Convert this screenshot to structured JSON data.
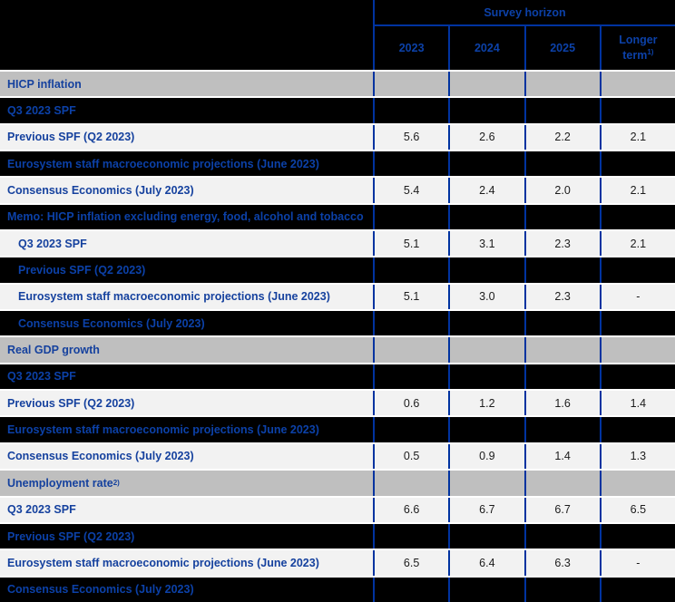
{
  "table": {
    "header": {
      "group_label": "Survey horizon",
      "columns": [
        {
          "label": "2023",
          "sup": ""
        },
        {
          "label": "2024",
          "sup": ""
        },
        {
          "label": "2025",
          "sup": ""
        },
        {
          "label": "Longer term",
          "sup": "1)"
        }
      ]
    },
    "colors": {
      "border_blue": "#0033a0",
      "label_blue_on_light": "#15419e",
      "label_blue_on_dark": "#0c41a8",
      "section_row_bg": "#bfbfbf",
      "light_row_bg": "#f2f2f2",
      "dark_row_bg": "#000000",
      "value_text": "#1c1c1c",
      "row_separator": "#ffffff"
    },
    "rows": [
      {
        "type": "section",
        "indent": false,
        "label": "HICP inflation",
        "sup": "",
        "values": [
          "",
          "",
          "",
          ""
        ]
      },
      {
        "type": "dark",
        "indent": false,
        "label": "Q3 2023 SPF",
        "sup": "",
        "values": [
          "",
          "",
          "",
          ""
        ]
      },
      {
        "type": "light",
        "indent": false,
        "label": "Previous SPF (Q2 2023)",
        "sup": "",
        "values": [
          "5.6",
          "2.6",
          "2.2",
          "2.1"
        ]
      },
      {
        "type": "dark",
        "indent": false,
        "label": "Eurosystem staff macroeconomic projections (June 2023)",
        "sup": "",
        "values": [
          "",
          "",
          "",
          ""
        ]
      },
      {
        "type": "light",
        "indent": false,
        "label": "Consensus Economics (July 2023)",
        "sup": "",
        "values": [
          "5.4",
          "2.4",
          "2.0",
          "2.1"
        ]
      },
      {
        "type": "dark",
        "indent": false,
        "label": "Memo: HICP inflation excluding energy, food, alcohol and tobacco",
        "sup": "",
        "values": [
          "",
          "",
          "",
          ""
        ]
      },
      {
        "type": "light",
        "indent": true,
        "label": "Q3 2023 SPF",
        "sup": "",
        "values": [
          "5.1",
          "3.1",
          "2.3",
          "2.1"
        ]
      },
      {
        "type": "dark",
        "indent": true,
        "label": "Previous SPF (Q2 2023)",
        "sup": "",
        "values": [
          "",
          "",
          "",
          ""
        ]
      },
      {
        "type": "light",
        "indent": true,
        "label": "Eurosystem staff macroeconomic projections (June 2023)",
        "sup": "",
        "values": [
          "5.1",
          "3.0",
          "2.3",
          "-"
        ]
      },
      {
        "type": "dark",
        "indent": true,
        "label": "Consensus Economics (July 2023)",
        "sup": "",
        "values": [
          "",
          "",
          "",
          ""
        ]
      },
      {
        "type": "section",
        "indent": false,
        "label": "Real GDP growth",
        "sup": "",
        "values": [
          "",
          "",
          "",
          ""
        ]
      },
      {
        "type": "dark",
        "indent": false,
        "label": "Q3 2023 SPF",
        "sup": "",
        "values": [
          "",
          "",
          "",
          ""
        ]
      },
      {
        "type": "light",
        "indent": false,
        "label": "Previous SPF (Q2 2023)",
        "sup": "",
        "values": [
          "0.6",
          "1.2",
          "1.6",
          "1.4"
        ]
      },
      {
        "type": "dark",
        "indent": false,
        "label": "Eurosystem staff macroeconomic projections (June 2023)",
        "sup": "",
        "values": [
          "",
          "",
          "",
          ""
        ]
      },
      {
        "type": "light",
        "indent": false,
        "label": "Consensus Economics (July 2023)",
        "sup": "",
        "values": [
          "0.5",
          "0.9",
          "1.4",
          "1.3"
        ]
      },
      {
        "type": "section",
        "indent": false,
        "label": "Unemployment rate",
        "sup": "2)",
        "values": [
          "",
          "",
          "",
          ""
        ]
      },
      {
        "type": "light",
        "indent": false,
        "label": "Q3 2023 SPF",
        "sup": "",
        "values": [
          "6.6",
          "6.7",
          "6.7",
          "6.5"
        ]
      },
      {
        "type": "dark",
        "indent": false,
        "label": "Previous SPF (Q2 2023)",
        "sup": "",
        "values": [
          "",
          "",
          "",
          ""
        ]
      },
      {
        "type": "light",
        "indent": false,
        "label": "Eurosystem staff macroeconomic projections (June 2023)",
        "sup": "",
        "values": [
          "6.5",
          "6.4",
          "6.3",
          "-"
        ]
      },
      {
        "type": "dark",
        "indent": false,
        "label": "Consensus Economics (July 2023)",
        "sup": "",
        "values": [
          "",
          "",
          "",
          ""
        ]
      }
    ]
  }
}
